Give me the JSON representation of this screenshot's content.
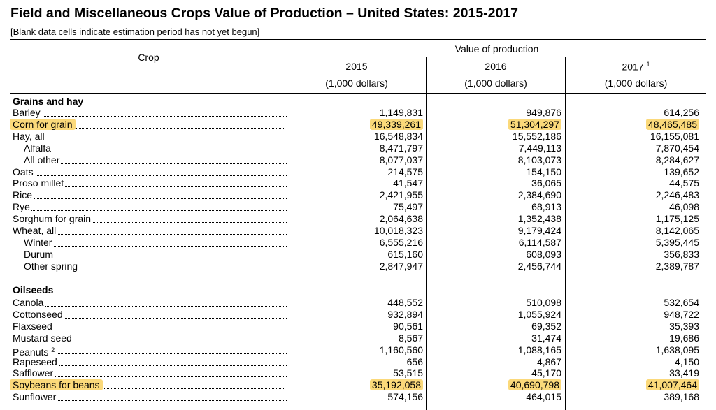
{
  "title": "Field and Miscellaneous Crops Value of Production – United States: 2015-2017",
  "note": "[Blank data cells indicate estimation period has not yet begun]",
  "header": {
    "crop": "Crop",
    "group": "Value of production",
    "years": [
      "2015",
      "2016",
      "2017"
    ],
    "footnote_2017": "1",
    "unit": "(1,000 dollars)"
  },
  "sections": [
    {
      "name": "Grains and hay",
      "rows": [
        {
          "crop": "Barley",
          "values": [
            "1,149,831",
            "949,876",
            "614,256"
          ]
        },
        {
          "crop": "Corn for grain",
          "values": [
            "49,339,261",
            "51,304,297",
            "48,465,485"
          ],
          "highlight": true
        },
        {
          "crop": "Hay, all",
          "values": [
            "16,548,834",
            "15,552,186",
            "16,155,081"
          ]
        },
        {
          "crop": "Alfalfa",
          "values": [
            "8,471,797",
            "7,449,113",
            "7,870,454"
          ],
          "indent": true
        },
        {
          "crop": "All other",
          "values": [
            "8,077,037",
            "8,103,073",
            "8,284,627"
          ],
          "indent": true
        },
        {
          "crop": "Oats",
          "values": [
            "214,575",
            "154,150",
            "139,652"
          ]
        },
        {
          "crop": "Proso millet",
          "values": [
            "41,547",
            "36,065",
            "44,575"
          ]
        },
        {
          "crop": "Rice",
          "values": [
            "2,421,955",
            "2,384,690",
            "2,246,483"
          ]
        },
        {
          "crop": "Rye",
          "values": [
            "75,497",
            "68,913",
            "46,098"
          ]
        },
        {
          "crop": "Sorghum for grain",
          "values": [
            "2,064,638",
            "1,352,438",
            "1,175,125"
          ]
        },
        {
          "crop": "Wheat, all",
          "values": [
            "10,018,323",
            "9,179,424",
            "8,142,065"
          ]
        },
        {
          "crop": "Winter",
          "values": [
            "6,555,216",
            "6,114,587",
            "5,395,445"
          ],
          "indent": true
        },
        {
          "crop": "Durum",
          "values": [
            "615,160",
            "608,093",
            "356,833"
          ],
          "indent": true
        },
        {
          "crop": "Other spring",
          "values": [
            "2,847,947",
            "2,456,744",
            "2,389,787"
          ],
          "indent": true
        }
      ]
    },
    {
      "name": "Oilseeds",
      "rows": [
        {
          "crop": "Canola",
          "values": [
            "448,552",
            "510,098",
            "532,654"
          ]
        },
        {
          "crop": "Cottonseed",
          "values": [
            "932,894",
            "1,055,924",
            "948,722"
          ]
        },
        {
          "crop": "Flaxseed",
          "values": [
            "90,561",
            "69,352",
            "35,393"
          ]
        },
        {
          "crop": "Mustard seed",
          "values": [
            "8,567",
            "31,474",
            "19,686"
          ]
        },
        {
          "crop": "Peanuts",
          "footnote": "2",
          "values": [
            "1,160,560",
            "1,088,165",
            "1,638,095"
          ]
        },
        {
          "crop": "Rapeseed",
          "values": [
            "656",
            "4,867",
            "4,150"
          ]
        },
        {
          "crop": "Safflower",
          "values": [
            "53,515",
            "45,170",
            "33,419"
          ]
        },
        {
          "crop": "Soybeans for beans",
          "values": [
            "35,192,058",
            "40,690,798",
            "41,007,464"
          ],
          "highlight": true
        },
        {
          "crop": "Sunflower",
          "values": [
            "574,156",
            "464,015",
            "389,168"
          ]
        }
      ]
    }
  ],
  "colors": {
    "highlight": "#fbd97a"
  }
}
